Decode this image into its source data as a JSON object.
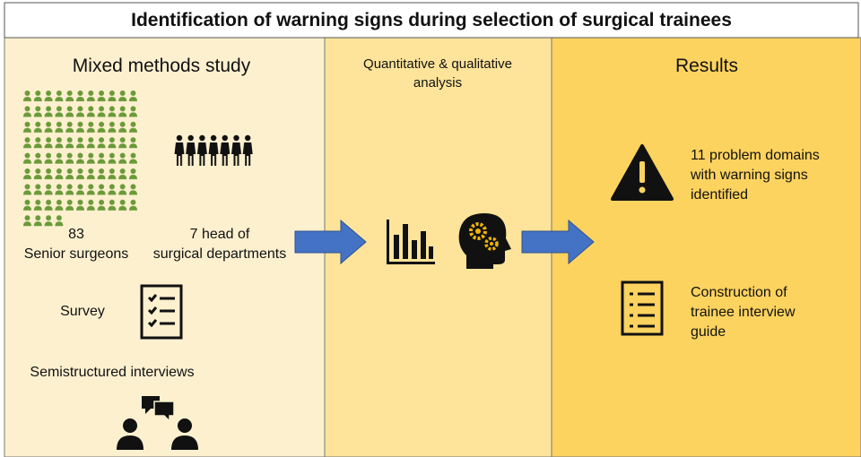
{
  "header": {
    "title": "Identification of warning signs during selection of surgical trainees"
  },
  "left": {
    "heading": "Mixed methods study",
    "surgeons": {
      "count": "83",
      "label": "Senior surgeons"
    },
    "heads": [
      "7 head of",
      "surgical departments"
    ],
    "survey": "Survey",
    "interviews": "Semistructured interviews"
  },
  "middle": {
    "heading": [
      "Quantitative & qualitative",
      "analysis"
    ]
  },
  "right": {
    "heading": "Results",
    "items": [
      {
        "lines": [
          "11 problem domains",
          "with warning signs",
          "identified"
        ]
      },
      {
        "lines": [
          "Construction of",
          "trainee interview",
          "guide"
        ]
      }
    ]
  }
}
